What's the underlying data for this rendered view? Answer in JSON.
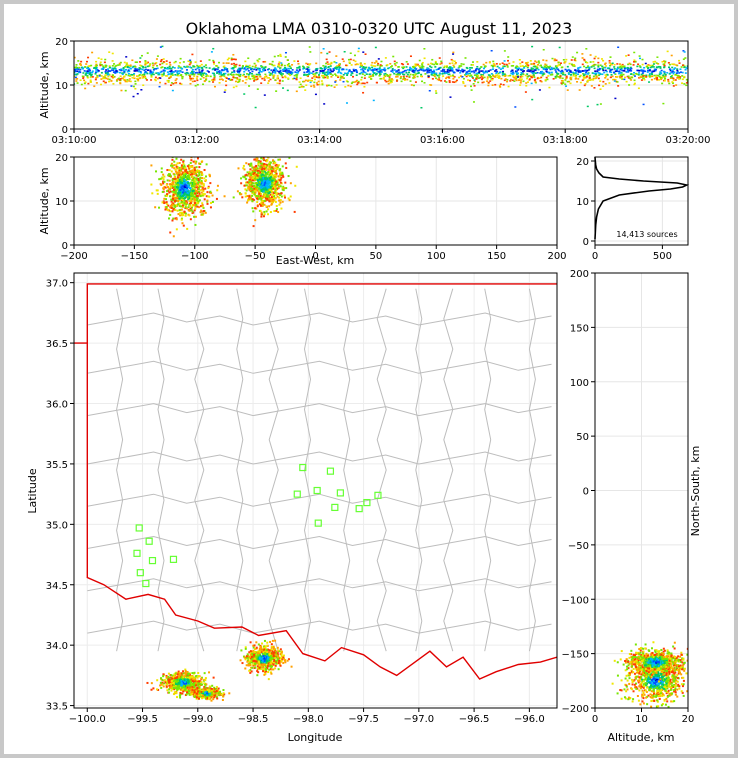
{
  "chart_data": {
    "title": "Oklahoma LMA 0310-0320 UTC August 11, 2023",
    "panels": [
      {
        "id": "alt-time",
        "type": "scatter",
        "xlabel": "",
        "ylabel": "Altitude, km",
        "xticks": [
          "03:10:00",
          "03:12:00",
          "03:14:00",
          "03:16:00",
          "03:18:00",
          "03:20:00"
        ],
        "xlim_minutes": [
          0,
          10
        ],
        "yticks": [
          0,
          10,
          20
        ],
        "ylim": [
          0,
          20
        ],
        "band_km": [
          9,
          16
        ],
        "core_km": [
          12,
          15
        ]
      },
      {
        "id": "alt-ew",
        "type": "scatter",
        "xlabel": "East-West, km",
        "ylabel": "Altitude, km",
        "xticks": [
          -200,
          -150,
          -100,
          -50,
          0,
          50,
          100,
          150,
          200
        ],
        "xlim": [
          -200,
          200
        ],
        "yticks": [
          0,
          10,
          20
        ],
        "ylim": [
          0,
          20
        ],
        "clusters": [
          {
            "x": -108,
            "z": 13,
            "sx": 9,
            "sz": 3.2
          },
          {
            "x": -42,
            "z": 14,
            "sx": 8,
            "sz": 2.8
          }
        ]
      },
      {
        "id": "histogram",
        "type": "line",
        "xticks": [
          0,
          500
        ],
        "xlim": [
          0,
          690
        ],
        "yticks": [
          0,
          10,
          20
        ],
        "ylim": [
          -1,
          21
        ],
        "annotation": "14,413 sources",
        "profile": [
          [
            0,
            0.5
          ],
          [
            2,
            2
          ],
          [
            5,
            4
          ],
          [
            12,
            6
          ],
          [
            25,
            8
          ],
          [
            60,
            10
          ],
          [
            180,
            11.5
          ],
          [
            400,
            12.5
          ],
          [
            560,
            13
          ],
          [
            650,
            13.5
          ],
          [
            680,
            14
          ],
          [
            610,
            14.5
          ],
          [
            360,
            15
          ],
          [
            180,
            15.5
          ],
          [
            60,
            16
          ],
          [
            30,
            17
          ],
          [
            12,
            18
          ],
          [
            5,
            19
          ],
          [
            2,
            20
          ],
          [
            0,
            21
          ]
        ]
      },
      {
        "id": "plan-view",
        "type": "scatter",
        "xlabel": "Longitude",
        "ylabel": "Latitude",
        "xticks": [
          -100.0,
          -99.5,
          -99.0,
          -98.5,
          -98.0,
          -97.5,
          -97.0,
          -96.5,
          -96.0
        ],
        "xtick_labels": [
          "−100.0",
          "−99.5",
          "−99.0",
          "−98.5",
          "−98.0",
          "−97.5",
          "−97.0",
          "−96.5",
          "−96.0"
        ],
        "xlim": [
          -100.12,
          -95.75
        ],
        "yticks": [
          33.5,
          34.0,
          34.5,
          35.0,
          35.5,
          36.0,
          36.5,
          37.0
        ],
        "ytick_labels": [
          "33.5",
          "34.0",
          "34.5",
          "35.0",
          "35.5",
          "36.0",
          "36.5",
          "37.0"
        ],
        "ylim": [
          33.48,
          37.08
        ],
        "stations": [
          [
            -99.53,
            34.97
          ],
          [
            -99.44,
            34.86
          ],
          [
            -99.55,
            34.76
          ],
          [
            -99.41,
            34.7
          ],
          [
            -99.52,
            34.6
          ],
          [
            -99.47,
            34.51
          ],
          [
            -99.22,
            34.71
          ],
          [
            -98.05,
            35.47
          ],
          [
            -97.8,
            35.44
          ],
          [
            -98.1,
            35.25
          ],
          [
            -97.92,
            35.28
          ],
          [
            -97.71,
            35.26
          ],
          [
            -97.76,
            35.14
          ],
          [
            -97.47,
            35.18
          ],
          [
            -97.37,
            35.24
          ],
          [
            -97.54,
            35.13
          ],
          [
            -97.91,
            35.01
          ]
        ],
        "clusters": [
          {
            "lon": -99.13,
            "lat": 33.69,
            "slon": 0.09,
            "slat": 0.045
          },
          {
            "lon": -98.92,
            "lat": 33.6,
            "slon": 0.06,
            "slat": 0.02
          },
          {
            "lon": -98.4,
            "lat": 33.89,
            "slon": 0.08,
            "slat": 0.05
          }
        ]
      },
      {
        "id": "ns-alt",
        "type": "scatter",
        "xlabel": "Altitude, km",
        "ylabel": "North-South, km",
        "xticks": [
          0,
          10,
          20
        ],
        "xlim": [
          0,
          20
        ],
        "yticks": [
          200,
          150,
          100,
          50,
          0,
          -50,
          -100,
          -150,
          -200
        ],
        "ylim": [
          -200,
          200
        ],
        "clusters": [
          {
            "z": 13,
            "y": -175,
            "sz": 3.2,
            "sy": 10
          },
          {
            "z": 13,
            "y": -158,
            "sz": 3,
            "sy": 6
          }
        ]
      }
    ]
  }
}
